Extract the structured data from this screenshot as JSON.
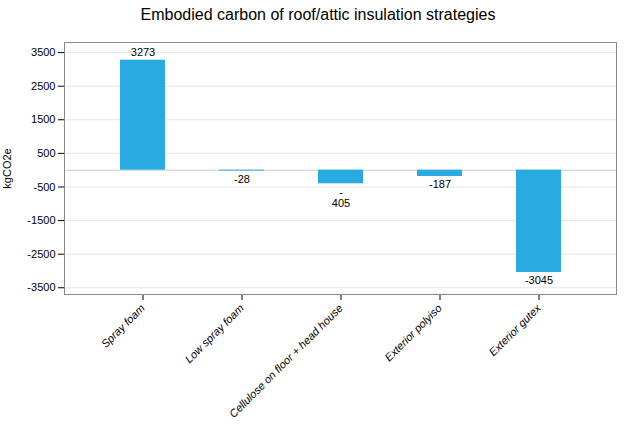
{
  "chart_data": {
    "type": "bar",
    "title": "Embodied carbon of roof/attic insulation strategies",
    "categories": [
      "Spray foam",
      "Low spray foam",
      "Cellulose on floor + head house",
      "Exterior polyiso",
      "Exterior gutex"
    ],
    "values": [
      3273,
      -28,
      -405,
      -187,
      -3045
    ],
    "value_labels": [
      "3273",
      "-28",
      "-\n405",
      "-187",
      "-3045"
    ],
    "data_labels": true,
    "color": "#29ABE2",
    "ylabel": "kgCO2e",
    "ylim": [
      -3700,
      3800
    ],
    "yticks": [
      -3500,
      -2500,
      -1500,
      -500,
      500,
      1500,
      2500,
      3500
    ],
    "grid": true
  }
}
